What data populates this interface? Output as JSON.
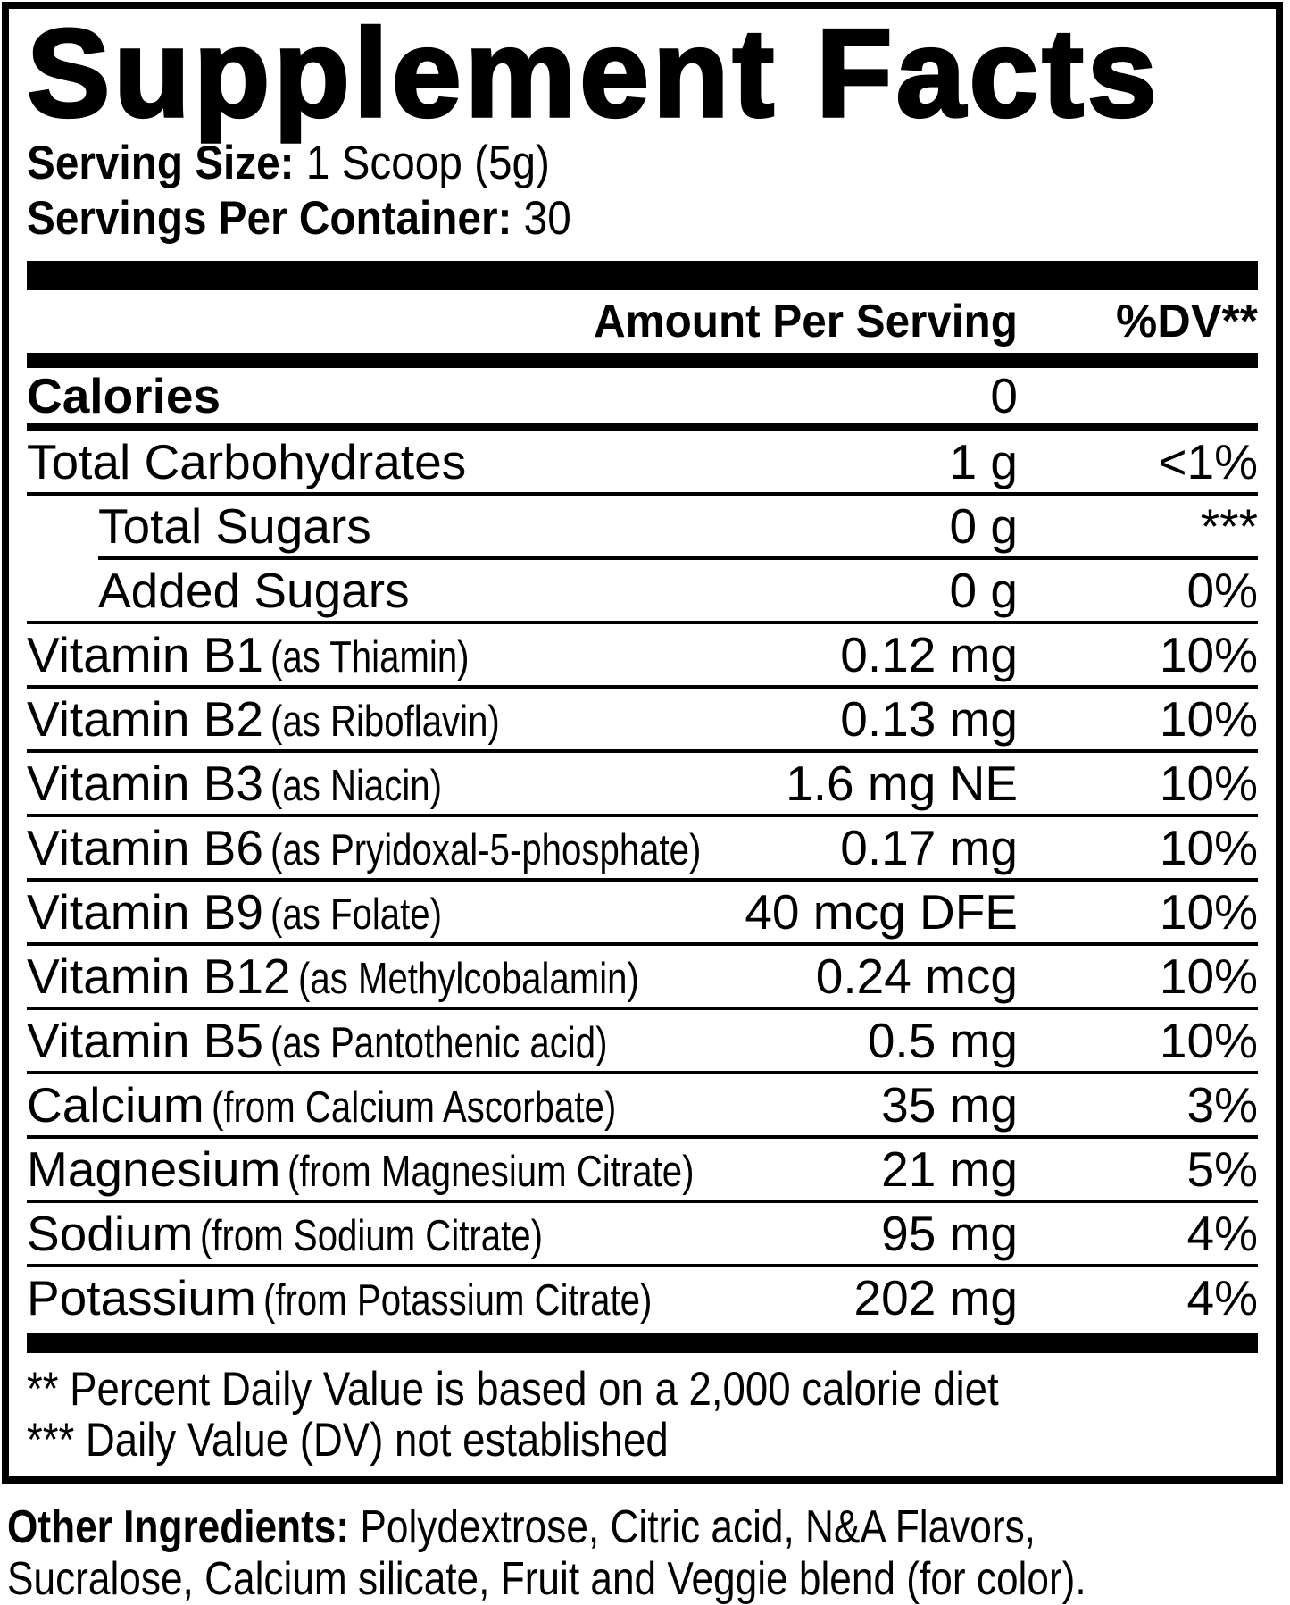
{
  "colors": {
    "ink": "#000000",
    "paper": "#ffffff"
  },
  "title": "Supplement Facts",
  "serving": {
    "size_label": "Serving Size:",
    "size_value": "1 Scoop (5g)",
    "count_label": "Servings Per Container:",
    "count_value": "30"
  },
  "columns": {
    "amount": "Amount Per Serving",
    "dv": "%DV**"
  },
  "calories": {
    "name": "Calories",
    "amount": "0",
    "dv": ""
  },
  "rows": [
    {
      "name": "Total Carbohydrates",
      "qualifier": "",
      "amount": "1 g",
      "dv": "<1%",
      "indent": false,
      "divider_indent": false
    },
    {
      "name": "Total Sugars",
      "qualifier": "",
      "amount": "0 g",
      "dv": "***",
      "indent": true,
      "divider_indent": false
    },
    {
      "name": "Added Sugars",
      "qualifier": "",
      "amount": "0 g",
      "dv": "0%",
      "indent": true,
      "divider_indent": true
    },
    {
      "name": "Vitamin B1",
      "qualifier": "(as Thiamin)",
      "amount": "0.12 mg",
      "dv": "10%",
      "indent": false,
      "divider_indent": false
    },
    {
      "name": "Vitamin B2",
      "qualifier": "(as Riboflavin)",
      "amount": "0.13 mg",
      "dv": "10%",
      "indent": false,
      "divider_indent": false
    },
    {
      "name": "Vitamin B3",
      "qualifier": "(as Niacin)",
      "amount": "1.6 mg NE",
      "dv": "10%",
      "indent": false,
      "divider_indent": false
    },
    {
      "name": "Vitamin B6",
      "qualifier": "(as Pryidoxal-5-phosphate)",
      "amount": "0.17 mg",
      "dv": "10%",
      "indent": false,
      "divider_indent": false
    },
    {
      "name": "Vitamin B9",
      "qualifier": "(as Folate)",
      "amount": "40 mcg DFE",
      "dv": "10%",
      "indent": false,
      "divider_indent": false
    },
    {
      "name": "Vitamin B12",
      "qualifier": "(as Methylcobalamin)",
      "amount": "0.24 mcg",
      "dv": "10%",
      "indent": false,
      "divider_indent": false
    },
    {
      "name": "Vitamin B5",
      "qualifier": "(as Pantothenic acid)",
      "amount": "0.5 mg",
      "dv": "10%",
      "indent": false,
      "divider_indent": false
    },
    {
      "name": "Calcium",
      "qualifier": "(from Calcium Ascorbate)",
      "amount": "35 mg",
      "dv": "3%",
      "indent": false,
      "divider_indent": false
    },
    {
      "name": "Magnesium",
      "qualifier": "(from Magnesium Citrate)",
      "amount": "21 mg",
      "dv": "5%",
      "indent": false,
      "divider_indent": false
    },
    {
      "name": "Sodium",
      "qualifier": "(from Sodium Citrate)",
      "amount": "95 mg",
      "dv": "4%",
      "indent": false,
      "divider_indent": false
    },
    {
      "name": "Potassium",
      "qualifier": "(from Potassium Citrate)",
      "amount": "202 mg",
      "dv": "4%",
      "indent": false,
      "divider_indent": false
    }
  ],
  "footnotes": [
    "** Percent Daily Value is based on a 2,000 calorie diet",
    "*** Daily Value (DV) not established"
  ],
  "other_ingredients": {
    "label": "Other Ingredients:",
    "line1": "Polydextrose, Citric acid, N&A Flavors,",
    "line2": "Sucralose, Calcium silicate, Fruit and Veggie blend (for color)."
  }
}
